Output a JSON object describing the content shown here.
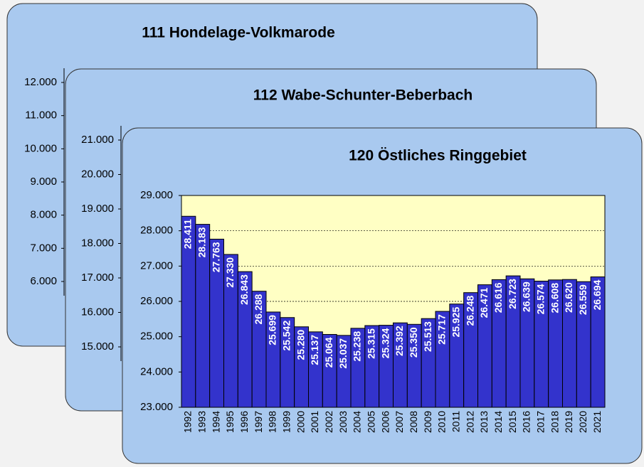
{
  "chart_data": [
    {
      "type": "bar",
      "title": "111  Hondelage-Volkmarode",
      "ylim": [
        6000,
        12000
      ],
      "yticks": [
        {
          "value": 12000,
          "label": "12.000"
        },
        {
          "value": 11000,
          "label": "11.000"
        },
        {
          "value": 10000,
          "label": "10.000"
        },
        {
          "value": 9000,
          "label": "9.000"
        },
        {
          "value": 8000,
          "label": "8.000"
        },
        {
          "value": 7000,
          "label": "7.000"
        },
        {
          "value": 6000,
          "label": "6.000"
        }
      ]
    },
    {
      "type": "bar",
      "title": "112  Wabe-Schunter-Beberbach",
      "ylim": [
        15000,
        21000
      ],
      "yticks": [
        {
          "value": 21000,
          "label": "21.000"
        },
        {
          "value": 20000,
          "label": "20.000"
        },
        {
          "value": 19000,
          "label": "19.000"
        },
        {
          "value": 18000,
          "label": "18.000"
        },
        {
          "value": 17000,
          "label": "17.000"
        },
        {
          "value": 16000,
          "label": "16.000"
        },
        {
          "value": 15000,
          "label": "15.000"
        }
      ]
    },
    {
      "type": "bar",
      "title": "120  Östliches Ringgebiet",
      "color": "#3333cc",
      "grid": true,
      "ylim": [
        23000,
        29000
      ],
      "yticks": [
        {
          "value": 29000,
          "label": "29.000"
        },
        {
          "value": 28000,
          "label": "28.000"
        },
        {
          "value": 27000,
          "label": "27.000"
        },
        {
          "value": 26000,
          "label": "26.000"
        },
        {
          "value": 25000,
          "label": "25.000"
        },
        {
          "value": 24000,
          "label": "24.000"
        },
        {
          "value": 23000,
          "label": "23.000"
        }
      ],
      "categories": [
        "1992",
        "1993",
        "1994",
        "1995",
        "1996",
        "1997",
        "1998",
        "1999",
        "2000",
        "2001",
        "2002",
        "2003",
        "2004",
        "2005",
        "2006",
        "2007",
        "2008",
        "2009",
        "2010",
        "2011",
        "2012",
        "2013",
        "2014",
        "2015",
        "2016",
        "2017",
        "2018",
        "2019",
        "2020",
        "2021"
      ],
      "values": [
        28411,
        28183,
        27763,
        27330,
        26843,
        26288,
        25699,
        25542,
        25280,
        25137,
        25064,
        25037,
        25238,
        25315,
        25324,
        25392,
        25350,
        25513,
        25717,
        25925,
        26248,
        26471,
        26616,
        26723,
        26639,
        26574,
        26608,
        26620,
        26559,
        26694
      ],
      "value_labels": [
        "28.411",
        "28.183",
        "27.763",
        "27.330",
        "26.843",
        "26.288",
        "25.699",
        "25.542",
        "25.280",
        "25.137",
        "25.064",
        "25.037",
        "25.238",
        "25.315",
        "25.324",
        "25.392",
        "25.350",
        "25.513",
        "25.717",
        "25.925",
        "26.248",
        "26.471",
        "26.616",
        "26.723",
        "26.639",
        "26.574",
        "26.608",
        "26.620",
        "26.559",
        "26.694"
      ]
    }
  ]
}
